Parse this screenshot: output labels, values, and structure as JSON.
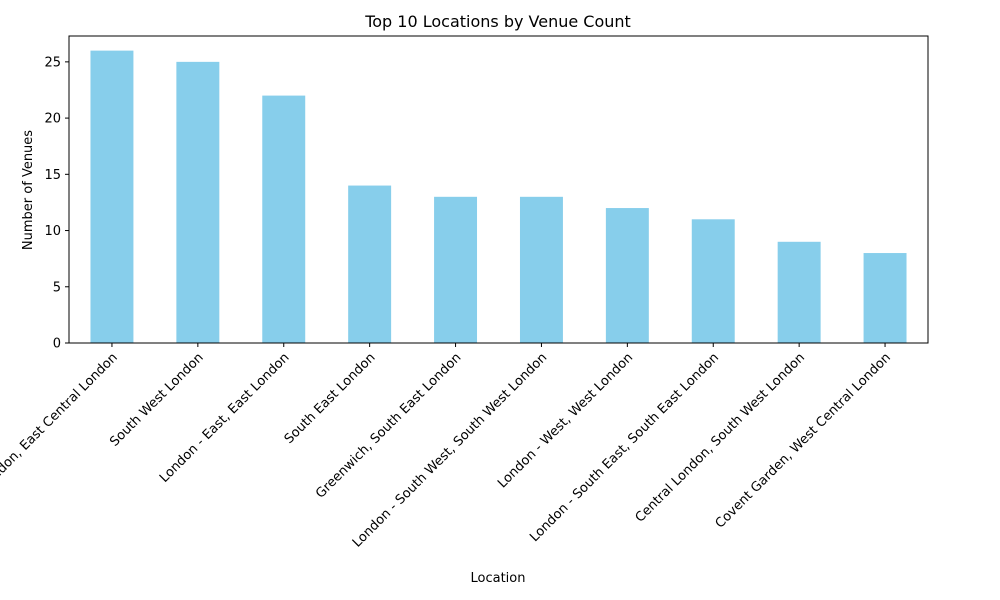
{
  "chart_data": {
    "type": "bar",
    "title": "Top 10 Locations by Venue Count",
    "xlabel": "Location",
    "ylabel": "Number of Venues",
    "categories": [
      "City of London, East Central London",
      "South West London",
      "London - East, East London",
      "South East London",
      "Greenwich, South East London",
      "London - South West, South West London",
      "London - West, West London",
      "London - South East, South East London",
      "Central London, South West London",
      "Covent Garden, West Central London"
    ],
    "values": [
      26,
      25,
      22,
      14,
      13,
      13,
      12,
      11,
      9,
      8
    ],
    "ylim": [
      0,
      27.3
    ],
    "yticks": [
      0,
      5,
      10,
      15,
      20,
      25
    ],
    "bar_color": "#87ceeb",
    "grid": false,
    "legend": "none",
    "xtick_rotation": 45
  }
}
